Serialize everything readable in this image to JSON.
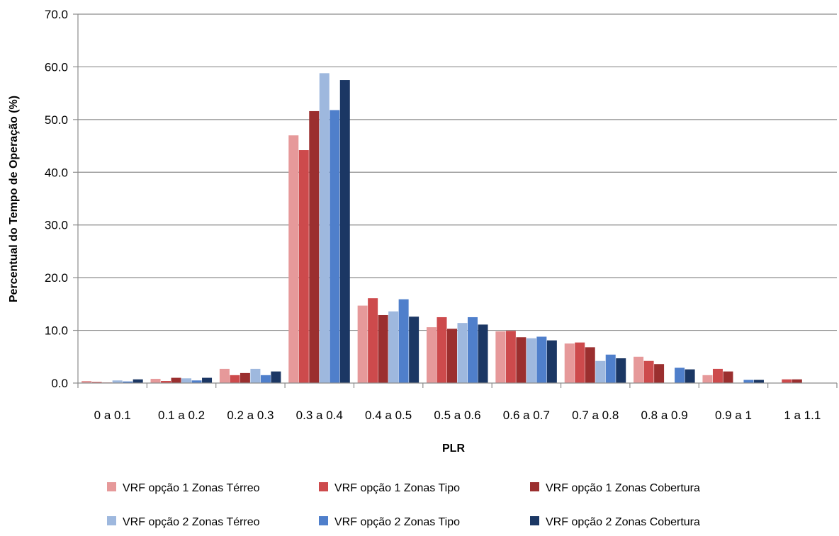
{
  "chart_data": {
    "type": "bar",
    "title": "",
    "xlabel": "PLR",
    "ylabel": "Percentual do Tempo de Operação (%)",
    "ylim": [
      0,
      70
    ],
    "yticks": [
      "0.0",
      "10.0",
      "20.0",
      "30.0",
      "40.0",
      "50.0",
      "60.0",
      "70.0"
    ],
    "grid": true,
    "legend_position": "bottom",
    "categories": [
      "0 a 0.1",
      "0.1 a 0.2",
      "0.2 a 0.3",
      "0.3 a 0.4",
      "0.4 a 0.5",
      "0.5 a 0.6",
      "0.6 a 0.7",
      "0.7 a 0.8",
      "0.8 a 0.9",
      "0.9 a 1",
      "1 a 1.1"
    ],
    "series": [
      {
        "name": "VRF opção 1 Zonas Térreo",
        "color": "#e6999a",
        "values": [
          0.4,
          0.8,
          2.7,
          47.0,
          14.7,
          10.6,
          9.8,
          7.5,
          5.0,
          1.5,
          0.0
        ]
      },
      {
        "name": "VRF opção 1 Zonas Tipo",
        "color": "#cd4a4c",
        "values": [
          0.2,
          0.4,
          1.5,
          44.2,
          16.1,
          12.5,
          9.9,
          7.7,
          4.2,
          2.7,
          0.7
        ]
      },
      {
        "name": "VRF opção 1 Zonas Cobertura",
        "color": "#9b2f2f",
        "values": [
          0.1,
          1.0,
          1.9,
          51.6,
          12.9,
          10.3,
          8.7,
          6.8,
          3.6,
          2.2,
          0.7
        ]
      },
      {
        "name": "VRF opção 2 Zonas Térreo",
        "color": "#9eb8de",
        "values": [
          0.5,
          0.9,
          2.7,
          58.8,
          13.6,
          11.4,
          8.5,
          4.2,
          0.0,
          0.0,
          0.0
        ]
      },
      {
        "name": "VRF opção 2 Zonas Tipo",
        "color": "#4f7fcb",
        "values": [
          0.3,
          0.5,
          1.5,
          51.8,
          15.9,
          12.5,
          8.8,
          5.4,
          2.9,
          0.6,
          0.0
        ]
      },
      {
        "name": "VRF opção 2 Zonas Cobertura",
        "color": "#1b3764",
        "values": [
          0.7,
          1.0,
          2.2,
          57.5,
          12.6,
          11.1,
          8.1,
          4.7,
          2.6,
          0.6,
          0.0
        ]
      }
    ]
  }
}
